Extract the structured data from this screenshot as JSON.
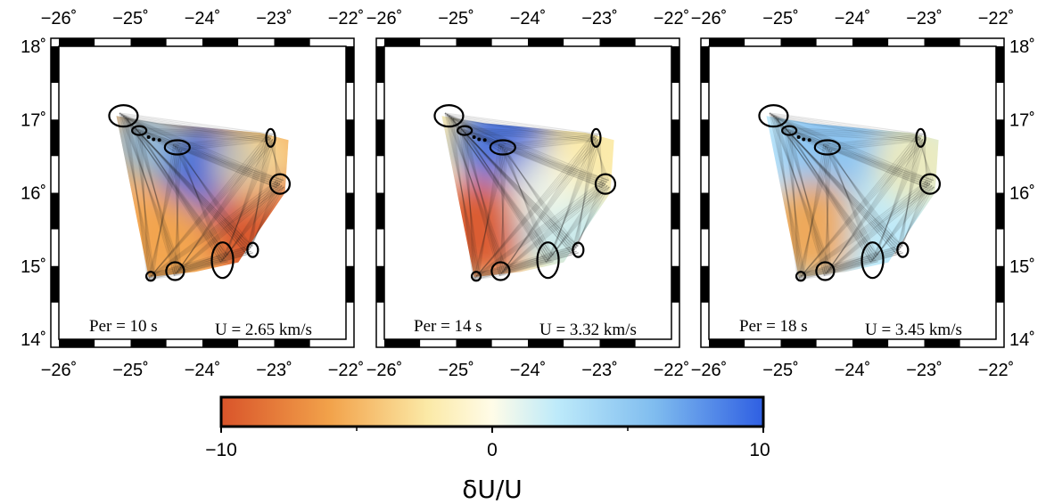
{
  "map": {
    "lon_ticks": [
      "−26˚",
      "−25˚",
      "−24˚",
      "−23˚",
      "−22˚"
    ],
    "lat_ticks": [
      "18˚",
      "17˚",
      "16˚",
      "15˚",
      "14˚"
    ],
    "lon_range": [
      -26,
      -22
    ],
    "lat_range": [
      14,
      18
    ]
  },
  "panels": [
    {
      "period_label": "Per = 10 s",
      "velocity_label": "U = 2.65 km/s",
      "period_s": 10,
      "velocity_kms": 2.65
    },
    {
      "period_label": "Per = 14 s",
      "velocity_label": "U = 3.32 km/s",
      "period_s": 14,
      "velocity_kms": 3.32
    },
    {
      "period_label": "Per = 18 s",
      "velocity_label": "U = 3.45 km/s",
      "period_s": 18,
      "velocity_kms": 3.45
    }
  ],
  "colorbar": {
    "label": "δU/U",
    "min": -10,
    "max": 10,
    "tick_labels": [
      "−10",
      "0",
      "10"
    ],
    "colors": [
      "#d9542a",
      "#f2a24a",
      "#fbe9a6",
      "#fffce8",
      "#bdeafa",
      "#7fbcef",
      "#2f5fe2"
    ]
  }
}
